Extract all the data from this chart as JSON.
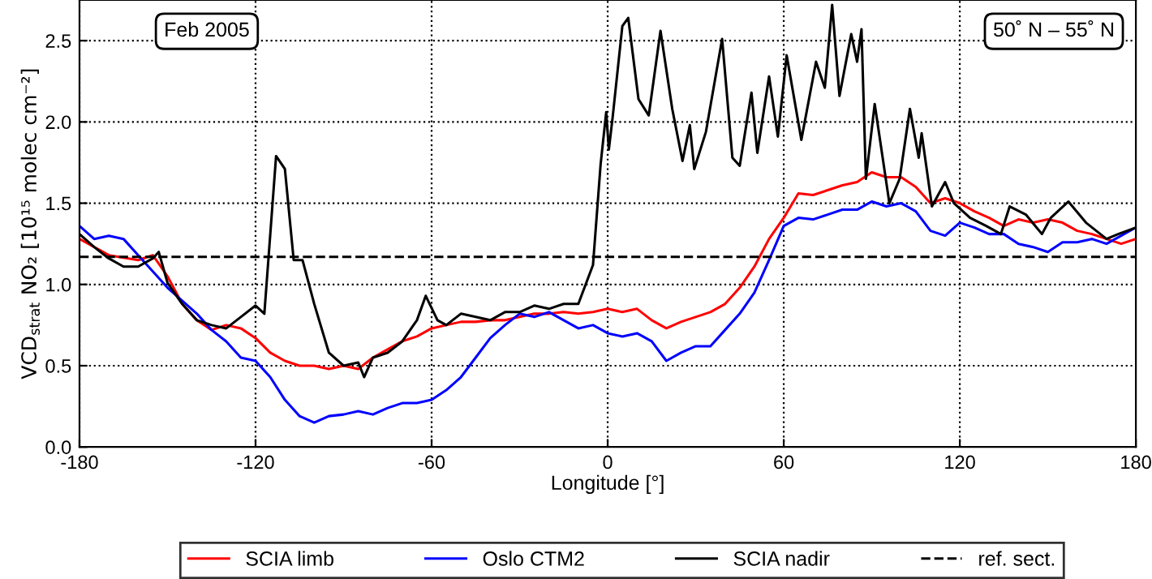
{
  "chart_data": {
    "type": "line",
    "xlabel": "Longitude [°]",
    "ylabel": "VCD$_{strat}$ NO₂ [10¹⁵ molec cm⁻²]",
    "annotations": [
      "Feb 2005",
      "50˚ N – 55˚ N"
    ],
    "xlim": [
      -180,
      180
    ],
    "xticks": [
      -180,
      -120,
      -60,
      0,
      60,
      120,
      180
    ],
    "ylim": [
      0,
      2.75
    ],
    "yticks": [
      {
        "value": 0,
        "label": "0.0"
      },
      {
        "value": 0.5,
        "label": "0.5"
      },
      {
        "value": 1,
        "label": "1.0"
      },
      {
        "value": 1.5,
        "label": "1.5"
      },
      {
        "value": 2,
        "label": "2.0"
      },
      {
        "value": 2.5,
        "label": "2.5"
      }
    ],
    "grid": true,
    "legend": "bottom",
    "line_style": "solid",
    "marker": "none",
    "ref_lines": [
      {
        "axis": "y",
        "value": 1.17,
        "label": "ref. sect.",
        "color": "#000000",
        "line_style": "dashed"
      }
    ],
    "series": [
      {
        "name": "SCIA limb",
        "color": "#ff0000",
        "x": [
          -180,
          -170,
          -160,
          -155,
          -150,
          -145,
          -140,
          -135,
          -130,
          -125,
          -120,
          -115,
          -110,
          -105,
          -100,
          -95,
          -90,
          -85,
          -80,
          -75,
          -70,
          -65,
          -60,
          -55,
          -50,
          -45,
          -40,
          -35,
          -30,
          -25,
          -20,
          -15,
          -10,
          -5,
          0,
          5,
          10,
          15,
          20,
          25,
          30,
          35,
          40,
          45,
          50,
          55,
          60,
          65,
          70,
          75,
          80,
          85,
          90,
          95,
          100,
          105,
          110,
          115,
          120,
          125,
          130,
          135,
          140,
          145,
          150,
          155,
          160,
          165,
          170,
          175,
          180
        ],
        "values": [
          1.28,
          1.18,
          1.15,
          1.18,
          1.05,
          0.88,
          0.78,
          0.72,
          0.75,
          0.73,
          0.67,
          0.58,
          0.53,
          0.5,
          0.5,
          0.48,
          0.5,
          0.48,
          0.55,
          0.6,
          0.65,
          0.68,
          0.73,
          0.75,
          0.77,
          0.77,
          0.78,
          0.78,
          0.8,
          0.82,
          0.82,
          0.83,
          0.82,
          0.83,
          0.85,
          0.83,
          0.85,
          0.78,
          0.73,
          0.77,
          0.8,
          0.83,
          0.88,
          0.98,
          1.11,
          1.28,
          1.41,
          1.56,
          1.55,
          1.58,
          1.61,
          1.63,
          1.69,
          1.66,
          1.66,
          1.6,
          1.5,
          1.53,
          1.5,
          1.45,
          1.41,
          1.36,
          1.4,
          1.38,
          1.4,
          1.38,
          1.33,
          1.31,
          1.28,
          1.25,
          1.28
        ]
      },
      {
        "name": "Oslo CTM2",
        "color": "#0000ff",
        "x": [
          -180,
          -175,
          -170,
          -165,
          -160,
          -155,
          -150,
          -145,
          -140,
          -135,
          -130,
          -125,
          -120,
          -115,
          -110,
          -105,
          -100,
          -95,
          -90,
          -85,
          -80,
          -75,
          -70,
          -65,
          -60,
          -55,
          -50,
          -45,
          -40,
          -35,
          -30,
          -25,
          -20,
          -15,
          -10,
          -5,
          0,
          5,
          10,
          15,
          20,
          25,
          30,
          35,
          40,
          45,
          50,
          55,
          60,
          65,
          70,
          75,
          80,
          85,
          90,
          95,
          100,
          105,
          110,
          115,
          120,
          125,
          130,
          135,
          140,
          145,
          150,
          155,
          160,
          165,
          170,
          175,
          180
        ],
        "values": [
          1.36,
          1.28,
          1.3,
          1.28,
          1.18,
          1.08,
          0.98,
          0.9,
          0.82,
          0.72,
          0.65,
          0.55,
          0.53,
          0.43,
          0.29,
          0.19,
          0.15,
          0.19,
          0.2,
          0.22,
          0.2,
          0.24,
          0.27,
          0.27,
          0.29,
          0.35,
          0.43,
          0.55,
          0.67,
          0.75,
          0.82,
          0.8,
          0.83,
          0.78,
          0.73,
          0.75,
          0.7,
          0.68,
          0.7,
          0.65,
          0.53,
          0.58,
          0.62,
          0.62,
          0.72,
          0.82,
          0.95,
          1.15,
          1.36,
          1.41,
          1.4,
          1.43,
          1.46,
          1.46,
          1.51,
          1.48,
          1.5,
          1.45,
          1.33,
          1.3,
          1.38,
          1.35,
          1.31,
          1.31,
          1.25,
          1.23,
          1.2,
          1.26,
          1.26,
          1.28,
          1.25,
          1.3,
          1.35
        ]
      },
      {
        "name": "SCIA nadir",
        "color": "#000000",
        "x": [
          -180,
          -175,
          -170,
          -165,
          -160,
          -155,
          -153,
          -150,
          -145,
          -140,
          -135,
          -130,
          -125,
          -120,
          -117,
          -113,
          -110,
          -107,
          -104,
          -100,
          -95,
          -90,
          -85,
          -83,
          -80,
          -75,
          -70,
          -65,
          -62,
          -58,
          -55,
          -50,
          -45,
          -40,
          -35,
          -30,
          -25,
          -20,
          -15,
          -10,
          -5,
          -2.4,
          -0.5,
          0.4,
          1.7,
          5,
          7,
          10.5,
          14,
          18,
          22,
          25.5,
          28,
          29.5,
          33.5,
          39,
          42.5,
          45,
          49,
          51,
          55,
          58,
          61,
          66,
          71,
          74,
          76.5,
          79,
          83,
          85,
          86.5,
          88,
          91,
          96,
          99.5,
          103,
          106,
          107,
          110.5,
          115,
          118,
          123.5,
          129,
          134,
          137,
          142.5,
          148,
          151,
          157,
          163,
          170,
          174,
          180
        ],
        "values": [
          1.31,
          1.23,
          1.16,
          1.11,
          1.11,
          1.16,
          1.2,
          1.01,
          0.88,
          0.78,
          0.75,
          0.73,
          0.8,
          0.87,
          0.82,
          1.79,
          1.71,
          1.15,
          1.15,
          0.88,
          0.58,
          0.5,
          0.52,
          0.43,
          0.55,
          0.58,
          0.65,
          0.78,
          0.93,
          0.78,
          0.75,
          0.82,
          0.8,
          0.78,
          0.83,
          0.83,
          0.87,
          0.85,
          0.88,
          0.88,
          1.12,
          1.74,
          2.06,
          1.83,
          2.03,
          2.59,
          2.64,
          2.14,
          2.04,
          2.56,
          2.08,
          1.76,
          1.98,
          1.71,
          1.94,
          2.51,
          1.78,
          1.73,
          2.18,
          1.81,
          2.28,
          1.91,
          2.41,
          1.89,
          2.37,
          2.21,
          2.72,
          2.16,
          2.54,
          2.37,
          2.57,
          1.65,
          2.11,
          1.5,
          1.65,
          2.08,
          1.78,
          1.93,
          1.48,
          1.63,
          1.5,
          1.41,
          1.36,
          1.31,
          1.48,
          1.43,
          1.31,
          1.41,
          1.51,
          1.38,
          1.28,
          1.31,
          1.35
        ]
      }
    ]
  }
}
